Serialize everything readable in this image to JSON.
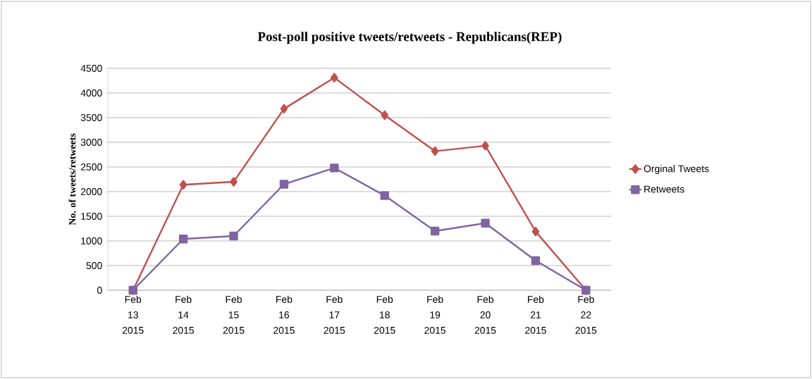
{
  "chart_data": {
    "type": "line",
    "title": "Post-poll positive tweets/retweets - Republicans(REP)",
    "ylabel": "No. of tweets/retweets",
    "categories": [
      "Feb 13 2015",
      "Feb 14 2015",
      "Feb 15 2015",
      "Feb 16 2015",
      "Feb 17 2015",
      "Feb 18 2015",
      "Feb 19 2015",
      "Feb 20 2015",
      "Feb 21 2015",
      "Feb 22 2015"
    ],
    "series": [
      {
        "name": "Orginal Tweets",
        "color": "#c0504d",
        "marker": "diamond",
        "values": [
          0,
          2140,
          2200,
          3680,
          4310,
          3550,
          2820,
          2930,
          1190,
          0
        ]
      },
      {
        "name": "Retweets",
        "color": "#8064a2",
        "marker": "square",
        "values": [
          0,
          1040,
          1100,
          2150,
          2480,
          1920,
          1200,
          1360,
          600,
          0
        ]
      }
    ],
    "ylim": [
      0,
      4500
    ],
    "yticks": [
      0,
      500,
      1000,
      1500,
      2000,
      2500,
      3000,
      3500,
      4000,
      4500
    ],
    "grid": "y",
    "legend": "right"
  }
}
